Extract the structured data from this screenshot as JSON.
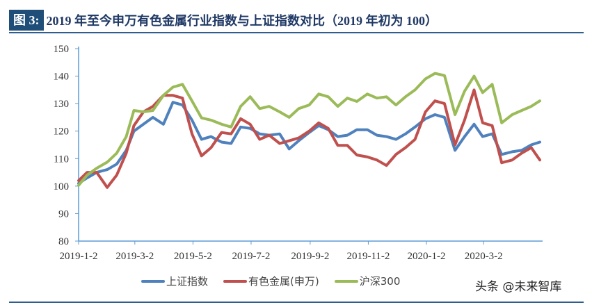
{
  "header": {
    "figure_label": "图 3:",
    "title": "2019 年至今申万有色金属行业指数与上证指数对比（2019 年初为 100）"
  },
  "watermark": "头条 @未来智库",
  "chart_data": {
    "type": "line",
    "title": "",
    "xlabel": "",
    "ylabel": "",
    "ylim": [
      80,
      150
    ],
    "yticks": [
      "80",
      "90",
      "100",
      "110",
      "120",
      "130",
      "140",
      "150"
    ],
    "xticks": [
      "2019-1-2",
      "2019-3-2",
      "2019-5-2",
      "2019-7-2",
      "2019-9-2",
      "2019-11-2",
      "2020-1-2",
      "2020-3-2"
    ],
    "grid": false,
    "legend_position": "bottom",
    "x": [
      "2019-01-02",
      "2019-01-11",
      "2019-01-21",
      "2019-02-01",
      "2019-02-11",
      "2019-02-21",
      "2019-03-01",
      "2019-03-11",
      "2019-03-21",
      "2019-04-01",
      "2019-04-11",
      "2019-04-21",
      "2019-05-01",
      "2019-05-11",
      "2019-05-21",
      "2019-06-01",
      "2019-06-11",
      "2019-06-21",
      "2019-07-01",
      "2019-07-11",
      "2019-07-21",
      "2019-08-01",
      "2019-08-11",
      "2019-08-21",
      "2019-09-01",
      "2019-09-11",
      "2019-09-21",
      "2019-10-01",
      "2019-10-11",
      "2019-10-21",
      "2019-11-01",
      "2019-11-11",
      "2019-11-21",
      "2019-12-01",
      "2019-12-11",
      "2019-12-21",
      "2020-01-01",
      "2020-01-11",
      "2020-01-21",
      "2020-02-01",
      "2020-02-11",
      "2020-02-21",
      "2020-03-01",
      "2020-03-11",
      "2020-03-21",
      "2020-04-01",
      "2020-04-11",
      "2020-04-21",
      "2020-04-30"
    ],
    "series": [
      {
        "name": "上证指数",
        "color": "#4f81bd",
        "values": [
          101,
          103,
          105,
          106,
          108,
          113,
          120,
          122.5,
          125,
          122.5,
          130.5,
          129.5,
          124,
          117,
          118,
          116,
          115.5,
          121.5,
          121,
          119,
          118.5,
          119,
          113.5,
          116.5,
          119.5,
          122,
          120.5,
          118,
          118.5,
          120.5,
          120.5,
          118.5,
          118,
          117,
          119,
          121.5,
          124.5,
          126,
          125,
          113,
          118,
          122.5,
          118,
          119,
          111.5,
          112.5,
          113,
          115,
          116
        ]
      },
      {
        "name": "有色金属(申万)",
        "color": "#c0504d",
        "values": [
          102,
          105,
          105,
          99.5,
          104,
          112,
          122,
          127,
          129,
          133,
          133,
          132,
          119,
          111,
          114,
          119.5,
          119,
          124.5,
          122.5,
          117,
          118.5,
          115.5,
          116.5,
          117.5,
          120,
          123,
          121,
          114.8,
          114.8,
          111.3,
          110.6,
          109.5,
          107.5,
          111.5,
          114,
          117,
          127,
          131,
          130,
          115,
          124,
          135,
          123,
          122,
          108.5,
          109.5,
          112,
          114,
          109.5
        ]
      },
      {
        "name": "沪深300",
        "color": "#9bbb59",
        "values": [
          100.3,
          104,
          106.5,
          108.7,
          112,
          118,
          127.5,
          127,
          127.5,
          133,
          136,
          137,
          131,
          124.8,
          124,
          122.5,
          121.5,
          129,
          132.5,
          128.2,
          129,
          127,
          125,
          128.2,
          129.5,
          133.5,
          132.5,
          129,
          132,
          130.8,
          133.5,
          132,
          132.5,
          129.5,
          132.5,
          135,
          139,
          141,
          140.2,
          126,
          134.5,
          140,
          134,
          137,
          123,
          126,
          127.5,
          129,
          131
        ]
      }
    ]
  }
}
